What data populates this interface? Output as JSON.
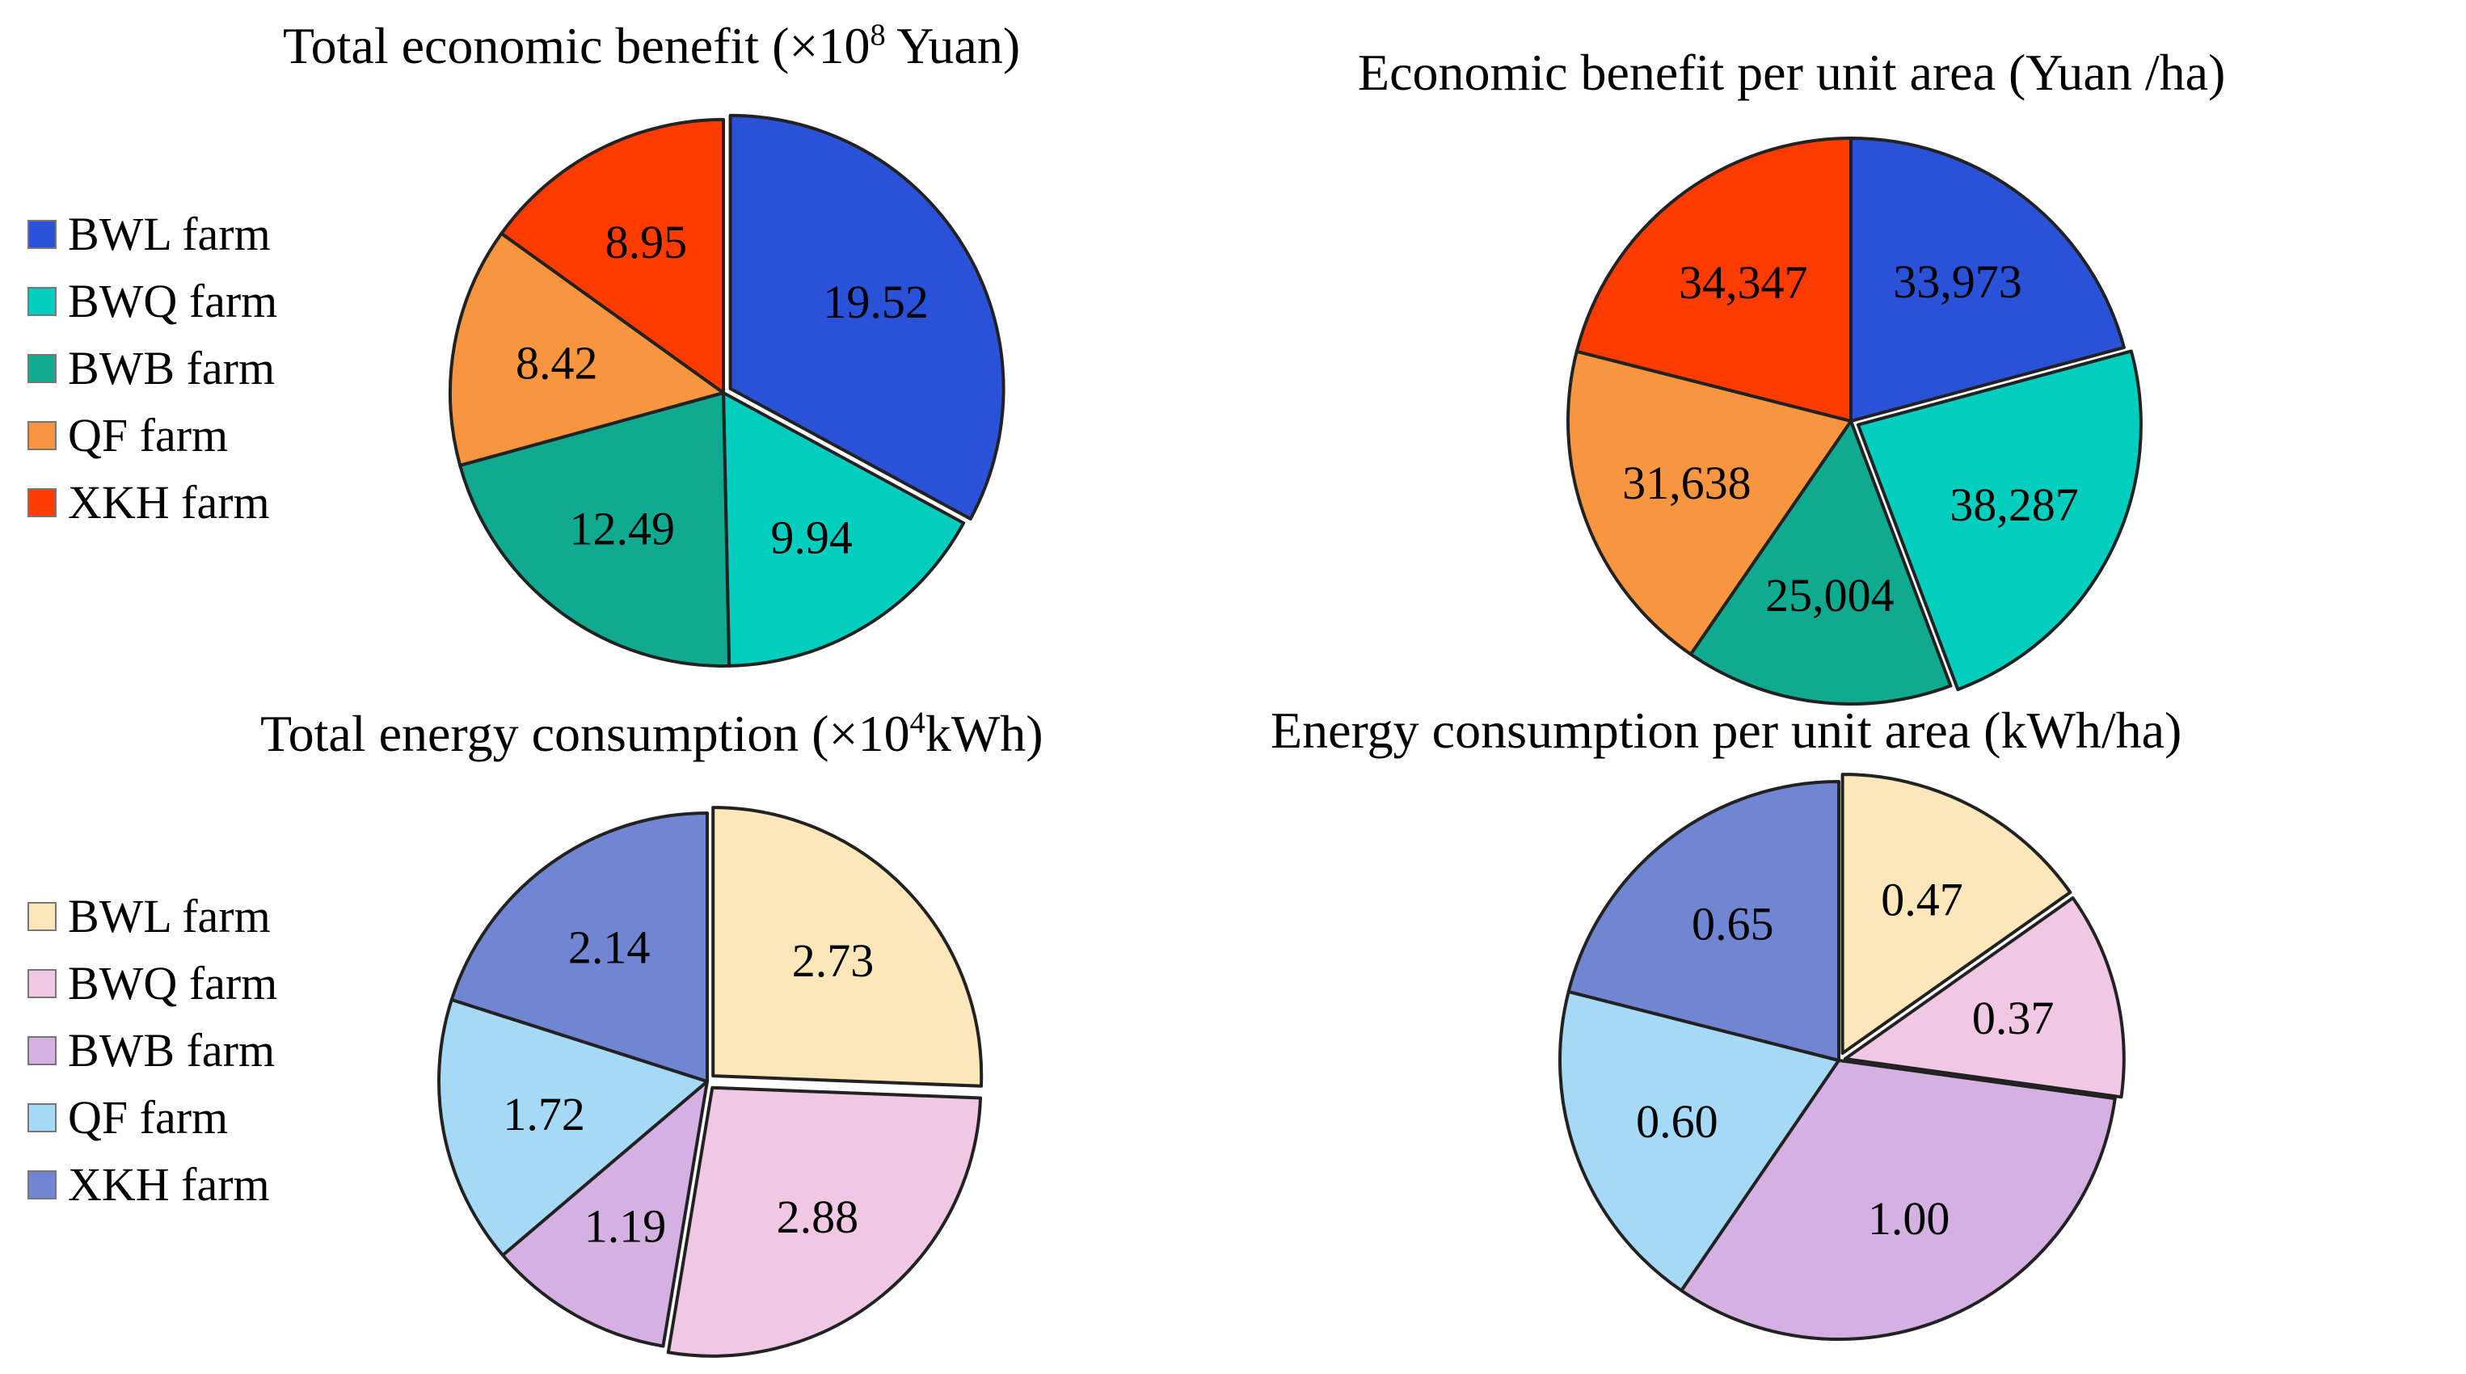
{
  "chart_data": [
    {
      "type": "pie",
      "title_main": "Total economic benefit (",
      "title_mult": "×10",
      "title_exp": "8",
      "title_unit": " Yuan)",
      "categories": [
        "BWL farm",
        "BWQ farm",
        "BWB farm",
        "QF farm",
        "XKH farm"
      ],
      "values": [
        19.52,
        9.94,
        12.49,
        8.42,
        8.95
      ],
      "labels": [
        "19.52",
        "9.94",
        "12.49",
        "8.42",
        "8.95"
      ],
      "colors": [
        "#2a52d8",
        "#00cfc0",
        "#0faa90",
        "#f7963e",
        "#ff3b00"
      ],
      "legend": true
    },
    {
      "type": "pie",
      "title": "Economic benefit per unit area (Yuan /ha)",
      "categories": [
        "BWL farm",
        "BWQ farm",
        "BWB farm",
        "QF farm",
        "XKH farm"
      ],
      "values": [
        33973,
        38287,
        25004,
        31638,
        34347
      ],
      "labels": [
        "33,973",
        "38,287",
        "25,004",
        "31,638",
        "34,347"
      ],
      "colors": [
        "#2a52d8",
        "#00cfc0",
        "#0faa90",
        "#f7963e",
        "#ff3b00"
      ],
      "legend": false
    },
    {
      "type": "pie",
      "title_main": "Total energy consumption (",
      "title_mult": "×10",
      "title_exp": "4",
      "title_unit": "kWh)",
      "categories": [
        "BWL farm",
        "BWQ farm",
        "BWB farm",
        "QF farm",
        "XKH farm"
      ],
      "values": [
        2.73,
        2.88,
        1.19,
        1.72,
        2.14
      ],
      "labels": [
        "2.73",
        "2.88",
        "1.19",
        "1.72",
        "2.14"
      ],
      "colors": [
        "#fbe7b9",
        "#f1c8e4",
        "#d4b0e3",
        "#a5d9f6",
        "#7186d3"
      ],
      "legend": true
    },
    {
      "type": "pie",
      "title": "Energy consumption per unit area (kWh/ha)",
      "categories": [
        "BWL farm",
        "BWQ farm",
        "BWB farm",
        "QF farm",
        "XKH farm"
      ],
      "values": [
        0.47,
        0.37,
        1.0,
        0.6,
        0.65
      ],
      "labels": [
        "0.47",
        "0.37",
        "1.00",
        "0.60",
        "0.65"
      ],
      "colors": [
        "#fbe7b9",
        "#f1c8e4",
        "#d4b0e3",
        "#a5d9f6",
        "#7186d3"
      ],
      "legend": false
    }
  ]
}
